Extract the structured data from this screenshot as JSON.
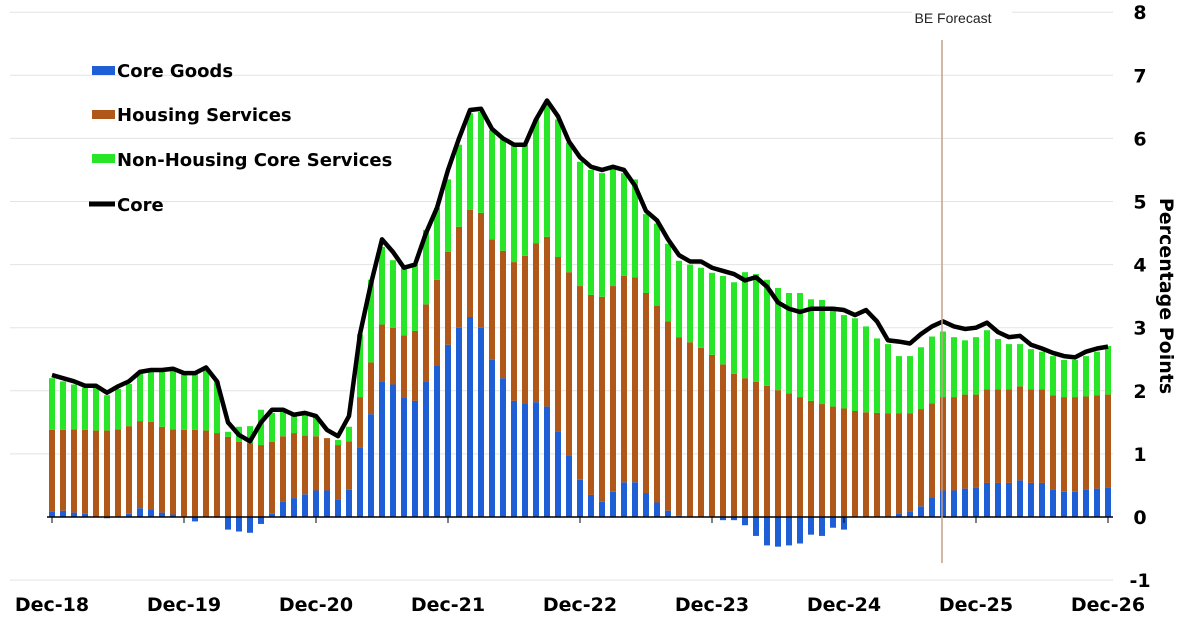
{
  "chart_data": {
    "type": "bar",
    "stacked": true,
    "x_start": "Dec-18",
    "x_end": "Dec-26",
    "frequency": "monthly",
    "x_tick_labels": [
      "Dec-18",
      "Dec-19",
      "Dec-20",
      "Dec-21",
      "Dec-22",
      "Dec-23",
      "Dec-24",
      "Dec-25",
      "Dec-26"
    ],
    "ylabel": "Percentage Points",
    "ylim": [
      -1,
      8
    ],
    "y_ticks": [
      "-1",
      "0",
      "1",
      "2",
      "3",
      "4",
      "5",
      "6",
      "7",
      "8"
    ],
    "grid": true,
    "legend_placement": "top-left",
    "annotation": {
      "label": "BE Forecast",
      "at_month_index": 81
    },
    "series": [
      {
        "name": "Core Goods",
        "kind": "bar",
        "color": "#1f5fd6",
        "values": [
          0.08,
          0.1,
          0.07,
          0.05,
          0,
          -0.02,
          0.01,
          0.05,
          0.14,
          0.12,
          0.07,
          0.04,
          0.01,
          -0.07,
          0,
          -0.01,
          -0.2,
          -0.23,
          -0.25,
          -0.11,
          0.05,
          0.25,
          0.3,
          0.36,
          0.42,
          0.42,
          0.27,
          0.43,
          1.1,
          1.63,
          2.14,
          2.1,
          1.9,
          1.84,
          2.14,
          2.4,
          2.73,
          3.0,
          3.17,
          3.0,
          2.5,
          2.2,
          1.84,
          1.8,
          1.82,
          1.75,
          1.36,
          0.98,
          0.59,
          0.35,
          0.24,
          0.4,
          0.55,
          0.55,
          0.38,
          0.23,
          0.1,
          0.02,
          0,
          0,
          0,
          -0.05,
          -0.05,
          -0.13,
          -0.3,
          -0.45,
          -0.47,
          -0.45,
          -0.42,
          -0.28,
          -0.3,
          -0.17,
          -0.2,
          0,
          0,
          0,
          0,
          0.06,
          0.08,
          0.17,
          0.31,
          0.42,
          0.42,
          0.45,
          0.47,
          0.54,
          0.54,
          0.54,
          0.58,
          0.54,
          0.54,
          0.44,
          0.4,
          0.4,
          0.44,
          0.45,
          0.47
        ]
      },
      {
        "name": "Housing Services",
        "kind": "bar",
        "color": "#b0571a",
        "values": [
          1.3,
          1.28,
          1.32,
          1.33,
          1.37,
          1.37,
          1.38,
          1.39,
          1.38,
          1.39,
          1.36,
          1.35,
          1.37,
          1.38,
          1.37,
          1.33,
          1.27,
          1.19,
          1.17,
          1.14,
          1.14,
          1.03,
          1.03,
          0.93,
          0.86,
          0.83,
          0.87,
          0.77,
          0.8,
          0.82,
          0.91,
          0.9,
          0.98,
          1.11,
          1.23,
          1.36,
          1.47,
          1.6,
          1.7,
          1.82,
          1.9,
          2.02,
          2.2,
          2.34,
          2.52,
          2.69,
          2.76,
          2.9,
          3.07,
          3.17,
          3.25,
          3.26,
          3.27,
          3.25,
          3.17,
          3.12,
          3.0,
          2.83,
          2.77,
          2.68,
          2.57,
          2.42,
          2.27,
          2.2,
          2.14,
          2.08,
          2.01,
          1.96,
          1.9,
          1.84,
          1.79,
          1.75,
          1.72,
          1.68,
          1.66,
          1.65,
          1.64,
          1.58,
          1.56,
          1.54,
          1.49,
          1.48,
          1.48,
          1.49,
          1.47,
          1.48,
          1.48,
          1.48,
          1.49,
          1.48,
          1.48,
          1.49,
          1.5,
          1.5,
          1.47,
          1.48,
          1.47
        ]
      },
      {
        "name": "Non-Housing Core Services",
        "kind": "bar",
        "color": "#28e528",
        "values": [
          0.82,
          0.77,
          0.71,
          0.67,
          0.68,
          0.56,
          0.64,
          0.67,
          0.76,
          0.79,
          0.87,
          0.94,
          0.9,
          0.9,
          0.96,
          0.82,
          0.08,
          0.24,
          0.27,
          0.56,
          0.46,
          0.44,
          0.3,
          0.34,
          0.32,
          0.0,
          0.08,
          0.23,
          1.0,
          1.31,
          1.23,
          1.07,
          1.07,
          1.05,
          1.18,
          1.14,
          1.15,
          1.3,
          1.53,
          1.6,
          1.73,
          1.78,
          1.86,
          1.76,
          1.96,
          2.09,
          2.18,
          2.05,
          1.97,
          1.98,
          1.96,
          1.87,
          1.63,
          1.55,
          1.25,
          1.3,
          1.23,
          1.21,
          1.23,
          1.27,
          1.3,
          1.4,
          1.45,
          1.68,
          1.71,
          1.68,
          1.62,
          1.59,
          1.65,
          1.61,
          1.65,
          1.58,
          1.48,
          1.47,
          1.36,
          1.18,
          1.1,
          0.91,
          0.91,
          0.98,
          1.06,
          1.04,
          0.95,
          0.86,
          0.91,
          0.94,
          0.8,
          0.72,
          0.67,
          0.64,
          0.6,
          0.62,
          0.59,
          0.59,
          0.64,
          0.69,
          0.77
        ]
      },
      {
        "name": "Core",
        "kind": "line",
        "color": "#000000",
        "values": [
          2.25,
          2.2,
          2.15,
          2.08,
          2.08,
          1.97,
          2.07,
          2.15,
          2.3,
          2.33,
          2.33,
          2.35,
          2.28,
          2.28,
          2.37,
          2.15,
          1.5,
          1.3,
          1.2,
          1.5,
          1.7,
          1.7,
          1.62,
          1.65,
          1.6,
          1.38,
          1.28,
          1.6,
          2.9,
          3.7,
          4.4,
          4.2,
          3.95,
          4.0,
          4.5,
          4.9,
          5.5,
          6.0,
          6.45,
          6.47,
          6.15,
          6.0,
          5.9,
          5.9,
          6.3,
          6.6,
          6.35,
          5.95,
          5.7,
          5.55,
          5.5,
          5.55,
          5.5,
          5.25,
          4.85,
          4.7,
          4.4,
          4.15,
          4.05,
          4.05,
          3.95,
          3.9,
          3.85,
          3.75,
          3.8,
          3.65,
          3.4,
          3.3,
          3.25,
          3.3,
          3.3,
          3.3,
          3.28,
          3.2,
          3.28,
          3.1,
          2.8,
          2.78,
          2.75,
          2.9,
          3.02,
          3.1,
          3.02,
          2.98,
          3.0,
          3.08,
          2.93,
          2.85,
          2.87,
          2.73,
          2.67,
          2.6,
          2.55,
          2.53,
          2.62,
          2.67,
          2.7
        ]
      }
    ]
  }
}
